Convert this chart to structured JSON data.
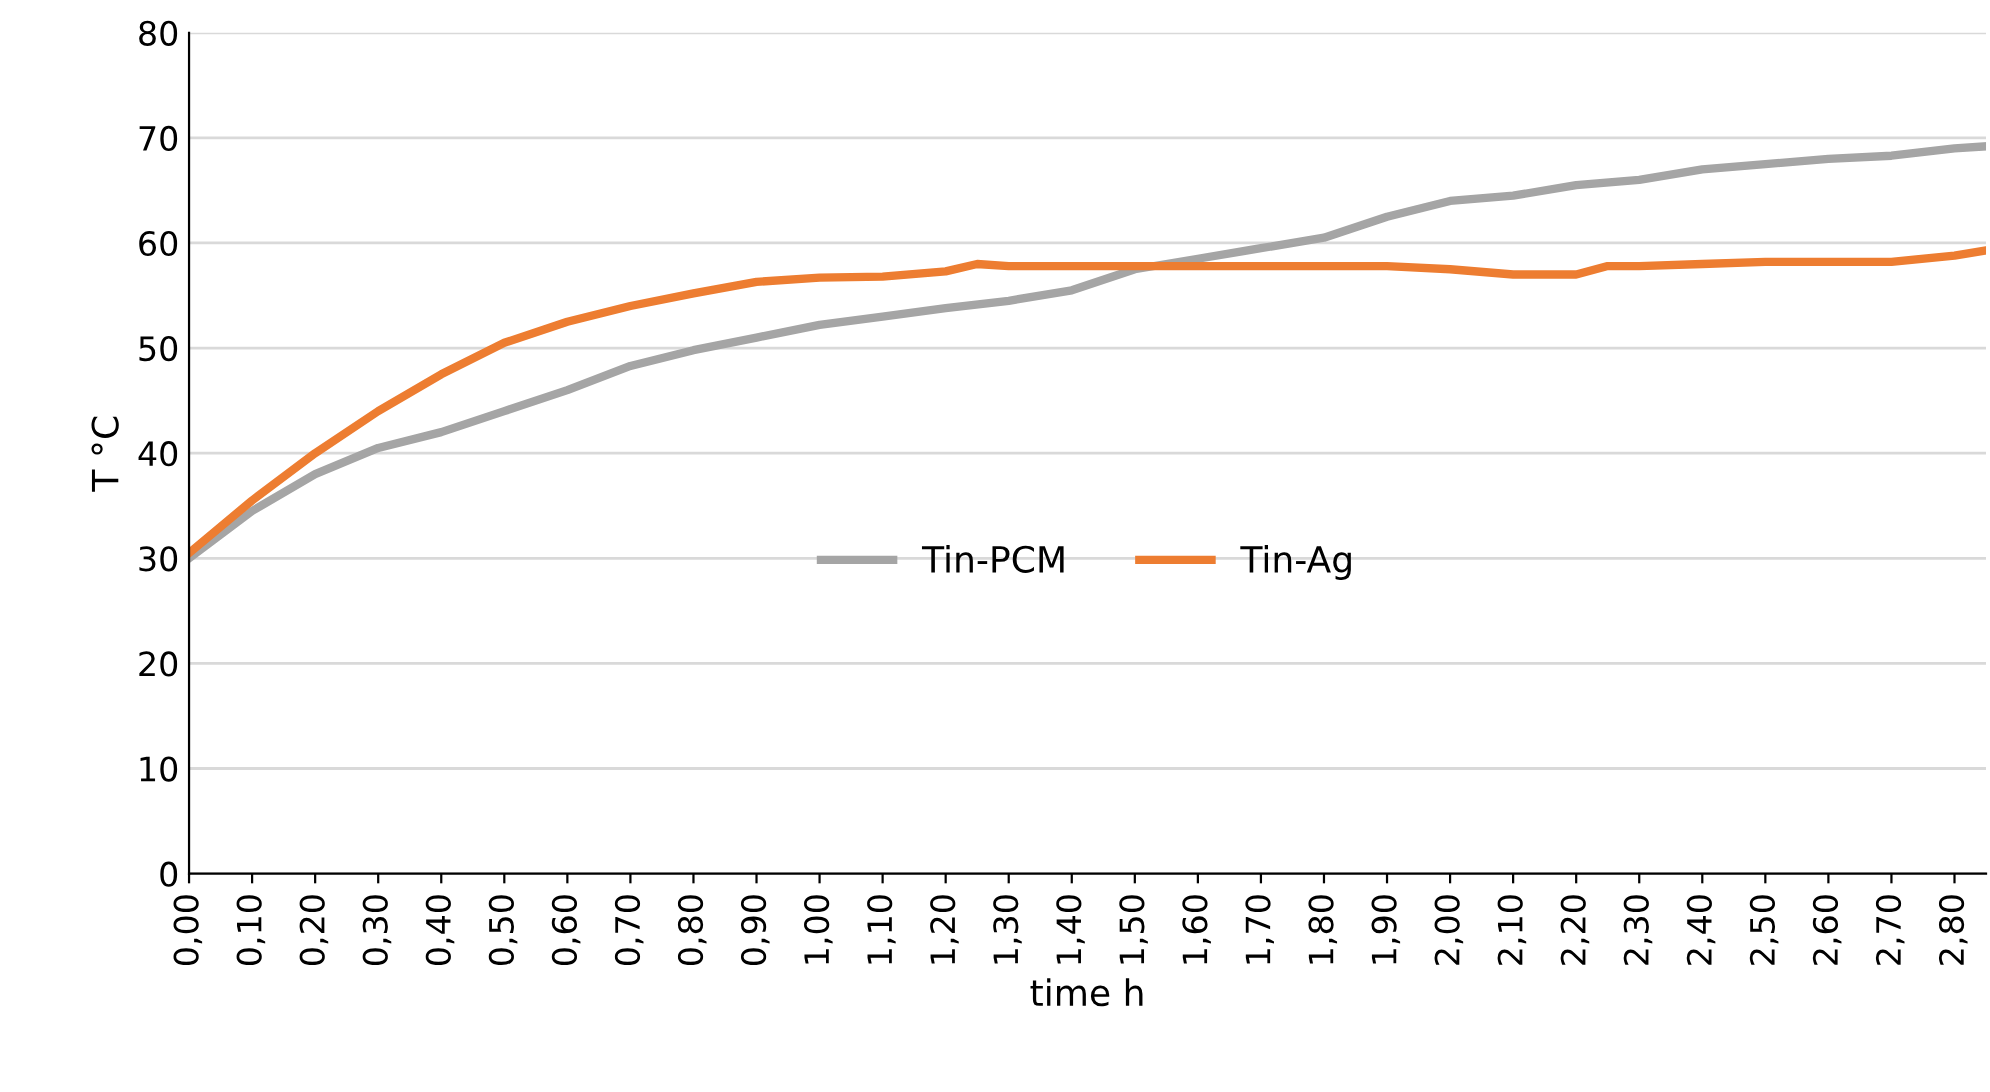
{
  "chart_data": {
    "type": "line",
    "xlabel": "time h",
    "ylabel": "T °C",
    "xlim": [
      0,
      2.85
    ],
    "ylim": [
      0,
      80
    ],
    "yticks": [
      0,
      10,
      20,
      30,
      40,
      50,
      60,
      70,
      80
    ],
    "xticks": [
      {
        "value": 0,
        "label": "0,00"
      },
      {
        "value": 0.1,
        "label": "0,10"
      },
      {
        "value": 0.2,
        "label": "0,20"
      },
      {
        "value": 0.3,
        "label": "0,30"
      },
      {
        "value": 0.4,
        "label": "0,40"
      },
      {
        "value": 0.5,
        "label": "0,50"
      },
      {
        "value": 0.6,
        "label": "0,60"
      },
      {
        "value": 0.7,
        "label": "0,70"
      },
      {
        "value": 0.8,
        "label": "0,80"
      },
      {
        "value": 0.9,
        "label": "0,90"
      },
      {
        "value": 1.0,
        "label": "1,00"
      },
      {
        "value": 1.1,
        "label": "1,10"
      },
      {
        "value": 1.2,
        "label": "1,20"
      },
      {
        "value": 1.3,
        "label": "1,30"
      },
      {
        "value": 1.4,
        "label": "1,40"
      },
      {
        "value": 1.5,
        "label": "1,50"
      },
      {
        "value": 1.6,
        "label": "1,60"
      },
      {
        "value": 1.7,
        "label": "1,70"
      },
      {
        "value": 1.8,
        "label": "1,80"
      },
      {
        "value": 1.9,
        "label": "1,90"
      },
      {
        "value": 2.0,
        "label": "2,00"
      },
      {
        "value": 2.1,
        "label": "2,10"
      },
      {
        "value": 2.2,
        "label": "2,20"
      },
      {
        "value": 2.3,
        "label": "2,30"
      },
      {
        "value": 2.4,
        "label": "2,40"
      },
      {
        "value": 2.5,
        "label": "2,50"
      },
      {
        "value": 2.6,
        "label": "2,60"
      },
      {
        "value": 2.7,
        "label": "2,70"
      },
      {
        "value": 2.8,
        "label": "2,80"
      }
    ],
    "grid": "y",
    "legend": "center",
    "marker": "none",
    "line_style": "solid",
    "series": [
      {
        "name": "Tin-PCM",
        "color": "#a5a5a5",
        "x": [
          0,
          0.1,
          0.2,
          0.3,
          0.4,
          0.5,
          0.6,
          0.7,
          0.8,
          0.9,
          1.0,
          1.1,
          1.2,
          1.3,
          1.4,
          1.5,
          1.6,
          1.7,
          1.8,
          1.9,
          2.0,
          2.1,
          2.2,
          2.3,
          2.4,
          2.5,
          2.6,
          2.7,
          2.8,
          2.85
        ],
        "values": [
          30,
          34.5,
          38,
          40.5,
          42,
          44,
          46,
          48.3,
          49.8,
          51,
          52.2,
          53,
          53.8,
          54.5,
          55.5,
          57.5,
          58.5,
          59.5,
          60.5,
          62.5,
          64,
          64.5,
          65.5,
          66,
          67,
          67.5,
          68,
          68.3,
          69,
          69.2
        ]
      },
      {
        "name": "Tin-Ag",
        "color": "#ed7d31",
        "x": [
          0,
          0.1,
          0.2,
          0.3,
          0.4,
          0.5,
          0.6,
          0.7,
          0.8,
          0.9,
          1.0,
          1.1,
          1.2,
          1.25,
          1.3,
          1.4,
          1.5,
          1.6,
          1.7,
          1.8,
          1.9,
          2.0,
          2.1,
          2.2,
          2.25,
          2.3,
          2.4,
          2.5,
          2.6,
          2.7,
          2.8,
          2.85
        ],
        "values": [
          30.5,
          35.5,
          40,
          44,
          47.5,
          50.5,
          52.5,
          54,
          55.2,
          56.3,
          56.7,
          56.8,
          57.3,
          58,
          57.8,
          57.8,
          57.8,
          57.8,
          57.8,
          57.8,
          57.8,
          57.5,
          57,
          57,
          57.8,
          57.8,
          58,
          58.2,
          58.2,
          58.2,
          58.8,
          59.3
        ]
      }
    ]
  }
}
